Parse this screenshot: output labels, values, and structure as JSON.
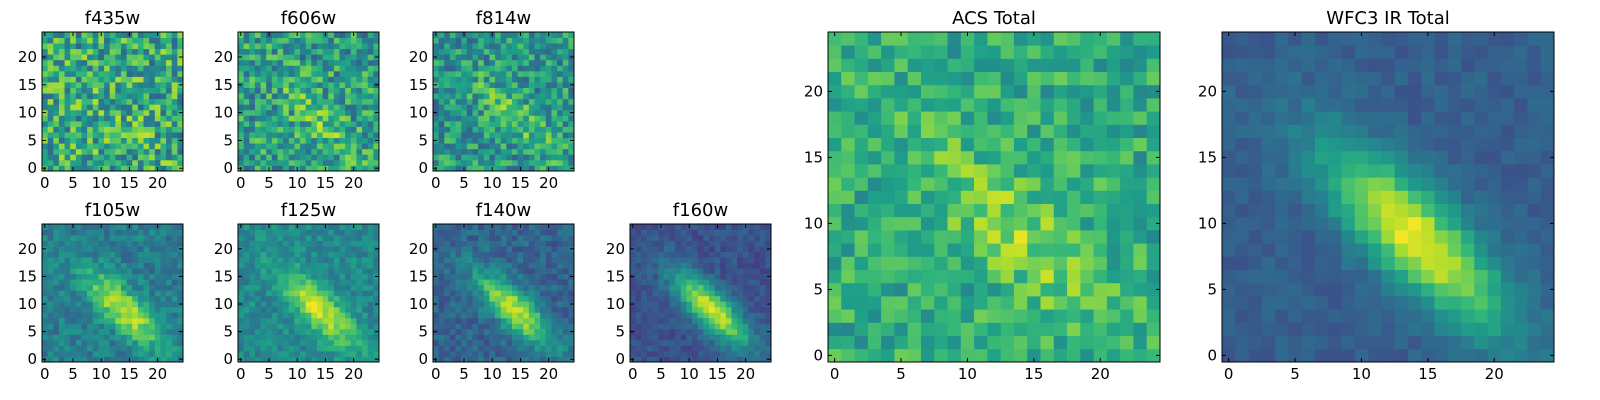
{
  "figure": {
    "colormap": "viridis",
    "colors": {
      "low": "#440154",
      "mid": "#21918c",
      "high": "#fde725",
      "frame": "#000000",
      "background": "#ffffff"
    }
  },
  "chart_data": [
    {
      "type": "heatmap",
      "title": "f435w",
      "grid": [
        25,
        25
      ],
      "xlim": [
        -0.5,
        24.5
      ],
      "ylim": [
        -0.5,
        24.5
      ],
      "xticks": [
        0,
        5,
        10,
        15,
        20
      ],
      "yticks": [
        0,
        5,
        10,
        15,
        20
      ],
      "signal": "noise-dominated",
      "stats": {
        "background": 0.6,
        "noise": 0.28,
        "peak": 0.05
      }
    },
    {
      "type": "heatmap",
      "title": "f606w",
      "grid": [
        25,
        25
      ],
      "xlim": [
        -0.5,
        24.5
      ],
      "ylim": [
        -0.5,
        24.5
      ],
      "xticks": [
        0,
        5,
        10,
        15,
        20
      ],
      "yticks": [
        0,
        5,
        10,
        15,
        20
      ],
      "signal": "faint diagonal source",
      "stats": {
        "background": 0.55,
        "noise": 0.24,
        "peak": 0.18
      }
    },
    {
      "type": "heatmap",
      "title": "f814w",
      "grid": [
        25,
        25
      ],
      "xlim": [
        -0.5,
        24.5
      ],
      "ylim": [
        -0.5,
        24.5
      ],
      "xticks": [
        0,
        5,
        10,
        15,
        20
      ],
      "yticks": [
        0,
        5,
        10,
        15,
        20
      ],
      "signal": "faint diagonal source",
      "stats": {
        "background": 0.52,
        "noise": 0.22,
        "peak": 0.22
      }
    },
    {
      "type": "heatmap",
      "title": "f105w",
      "grid": [
        25,
        25
      ],
      "xlim": [
        -0.5,
        24.5
      ],
      "ylim": [
        -0.5,
        24.5
      ],
      "xticks": [
        0,
        5,
        10,
        15,
        20
      ],
      "yticks": [
        0,
        5,
        10,
        15,
        20
      ],
      "signal": "diagonal source",
      "stats": {
        "background": 0.42,
        "noise": 0.11,
        "peak": 0.5
      }
    },
    {
      "type": "heatmap",
      "title": "f125w",
      "grid": [
        25,
        25
      ],
      "xlim": [
        -0.5,
        24.5
      ],
      "ylim": [
        -0.5,
        24.5
      ],
      "xticks": [
        0,
        5,
        10,
        15,
        20
      ],
      "yticks": [
        0,
        5,
        10,
        15,
        20
      ],
      "signal": "diagonal source",
      "stats": {
        "background": 0.47,
        "noise": 0.1,
        "peak": 0.45
      }
    },
    {
      "type": "heatmap",
      "title": "f140w",
      "grid": [
        25,
        25
      ],
      "xlim": [
        -0.5,
        24.5
      ],
      "ylim": [
        -0.5,
        24.5
      ],
      "xticks": [
        0,
        5,
        10,
        15,
        20
      ],
      "yticks": [
        0,
        5,
        10,
        15,
        20
      ],
      "signal": "diagonal source",
      "stats": {
        "background": 0.32,
        "noise": 0.1,
        "peak": 0.58
      }
    },
    {
      "type": "heatmap",
      "title": "f160w",
      "grid": [
        25,
        25
      ],
      "xlim": [
        -0.5,
        24.5
      ],
      "ylim": [
        -0.5,
        24.5
      ],
      "xticks": [
        0,
        5,
        10,
        15,
        20
      ],
      "yticks": [
        0,
        5,
        10,
        15,
        20
      ],
      "signal": "diagonal source",
      "stats": {
        "background": 0.25,
        "noise": 0.07,
        "peak": 0.68
      }
    },
    {
      "type": "heatmap",
      "title": "ACS Total",
      "grid": [
        25,
        25
      ],
      "xlim": [
        -0.5,
        24.5
      ],
      "ylim": [
        -0.5,
        24.5
      ],
      "xticks": [
        0,
        5,
        10,
        15,
        20
      ],
      "yticks": [
        0,
        5,
        10,
        15,
        20
      ],
      "signal": "faint diagonal source",
      "stats": {
        "background": 0.62,
        "noise": 0.16,
        "peak": 0.2
      }
    },
    {
      "type": "heatmap",
      "title": "WFC3 IR Total",
      "grid": [
        25,
        25
      ],
      "xlim": [
        -0.5,
        24.5
      ],
      "ylim": [
        -0.5,
        24.5
      ],
      "xticks": [
        0,
        5,
        10,
        15,
        20
      ],
      "yticks": [
        0,
        5,
        10,
        15,
        20
      ],
      "signal": "diagonal source",
      "stats": {
        "background": 0.3,
        "noise": 0.05,
        "peak": 0.68
      }
    }
  ]
}
